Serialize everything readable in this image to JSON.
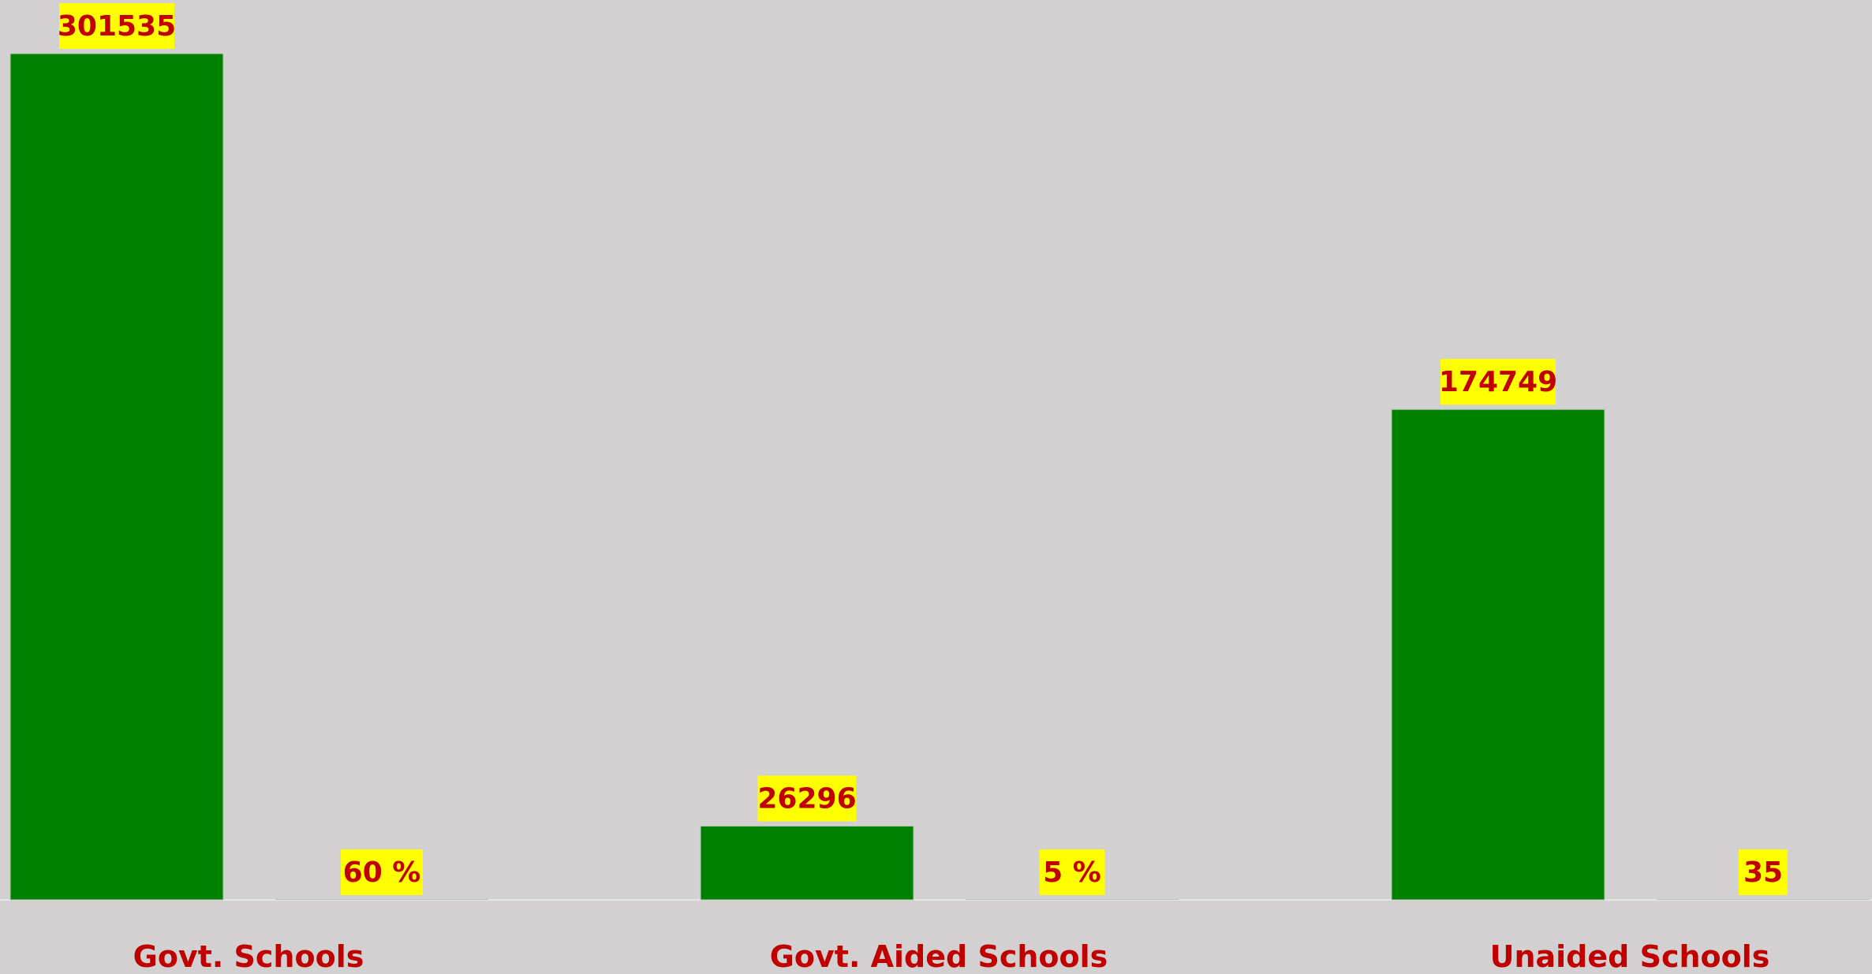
{
  "colors": {
    "background": "#d2d0d1",
    "bar": "#008000",
    "label_text": "#c00000",
    "label_bg": "#ffff00",
    "empty_bar_outline": "#bdbdbd"
  },
  "chart_data": {
    "type": "bar",
    "title": "",
    "xlabel": "",
    "ylabel": "",
    "categories": [
      "Govt. Schools",
      "Govt. Aided Schools",
      "Unaided Schools"
    ],
    "series": [
      {
        "values": [
          301535,
          26296,
          174749
        ],
        "labels": [
          "301535",
          "26296",
          "174749"
        ]
      },
      {
        "values": [
          60,
          5,
          35
        ],
        "labels": [
          "60 %",
          "5 %",
          "35"
        ]
      }
    ],
    "ylim": [
      0,
      301535
    ],
    "grid": false,
    "legend": "none"
  }
}
